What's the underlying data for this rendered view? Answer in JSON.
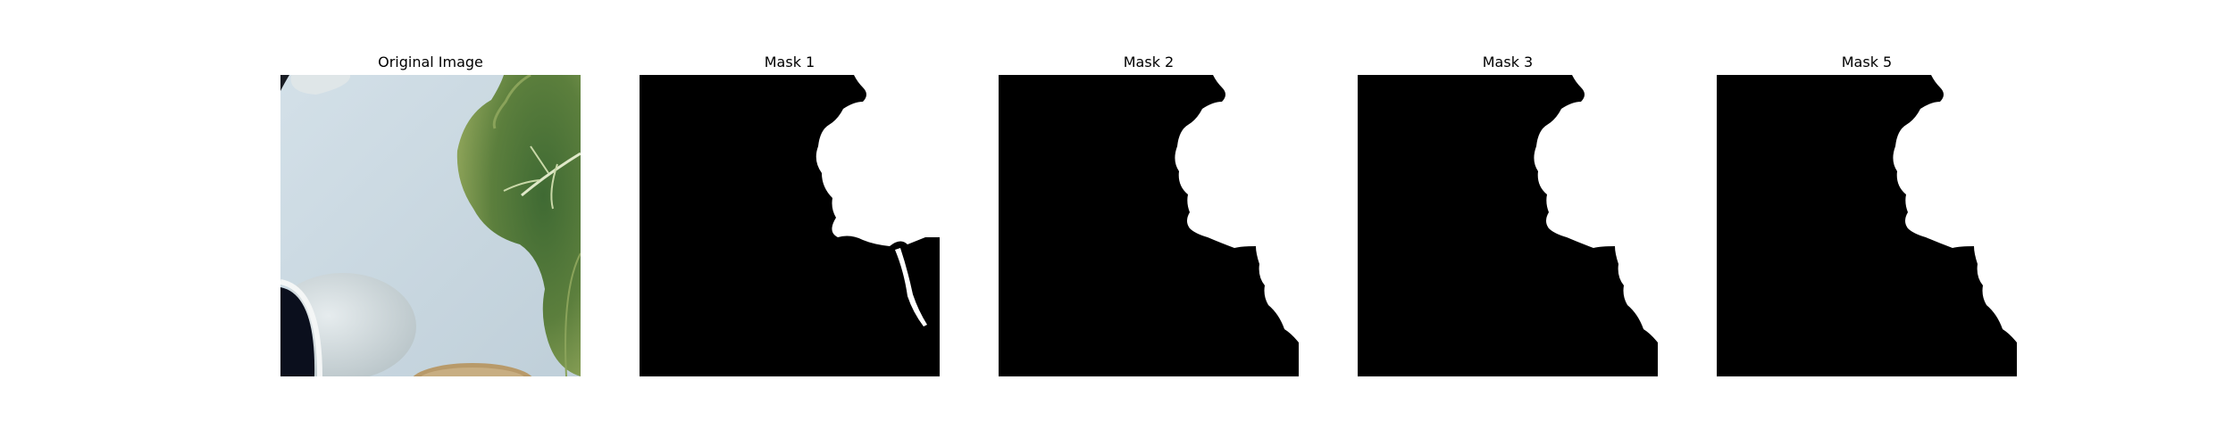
{
  "panels": [
    {
      "id": "original",
      "title": "Original Image"
    },
    {
      "id": "mask1",
      "title": "Mask 1"
    },
    {
      "id": "mask2",
      "title": "Mask 2"
    },
    {
      "id": "mask3",
      "title": "Mask 3"
    },
    {
      "id": "mask5",
      "title": "Mask 5"
    }
  ],
  "colors": {
    "mask_background": "#000000",
    "mask_foreground": "#ffffff",
    "leaf": "#5f7e3f",
    "table": "#cbd9e2"
  }
}
